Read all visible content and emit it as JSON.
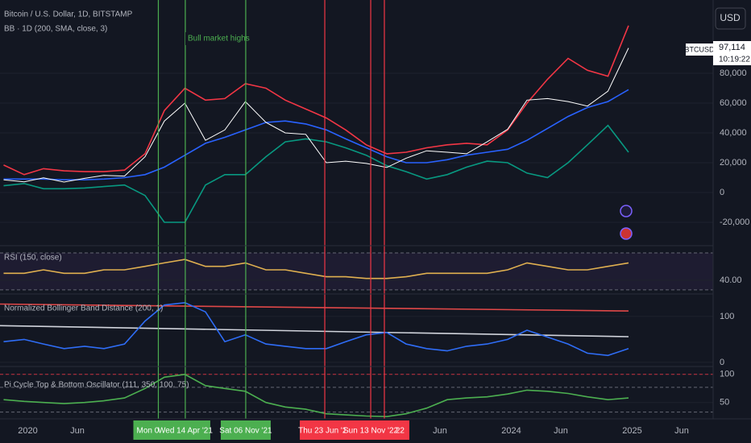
{
  "chart_data": [
    {
      "type": "line",
      "title": "Bitcoin / U.S. Dollar, 1D, BITSTAMP",
      "subtitle": "BB · 1D (200, SMA, close, 3)",
      "annotation": "Bull market highs",
      "x": [
        2019.8,
        2019.97,
        2020.13,
        2020.3,
        2020.47,
        2020.63,
        2020.8,
        2020.97,
        2021.13,
        2021.3,
        2021.47,
        2021.63,
        2021.8,
        2021.97,
        2022.13,
        2022.3,
        2022.47,
        2022.63,
        2022.8,
        2022.97,
        2023.13,
        2023.3,
        2023.47,
        2023.63,
        2023.8,
        2023.97,
        2024.13,
        2024.3,
        2024.47,
        2024.63,
        2024.8,
        2024.97
      ],
      "xlim": [
        2019.77,
        2025.67
      ],
      "ylim": [
        -35700,
        129200
      ],
      "yticks": [
        {
          "value": -20000,
          "label": "-20,000"
        },
        0,
        {
          "value": 20000,
          "label": "20,000"
        },
        {
          "value": 40000,
          "label": "40,000"
        },
        {
          "value": 60000,
          "label": "60,000"
        },
        {
          "value": 80000,
          "label": "80,000"
        }
      ],
      "series": [
        {
          "color": "#f23645",
          "values": [
            18400,
            12000,
            16000,
            14500,
            14000,
            14000,
            15000,
            26000,
            55000,
            70000,
            62000,
            63000,
            73000,
            70000,
            62000,
            56000,
            50000,
            42000,
            32000,
            26000,
            27000,
            30000,
            32000,
            33000,
            32000,
            42000,
            60000,
            76000,
            90000,
            82000,
            78000,
            112000
          ]
        },
        {
          "color": "#2962ff",
          "values": [
            9000,
            9000,
            9000,
            8500,
            8500,
            9000,
            10000,
            12000,
            17000,
            25000,
            33000,
            37000,
            42000,
            47000,
            48000,
            46000,
            42000,
            36000,
            30000,
            24000,
            20000,
            20000,
            22000,
            25000,
            27000,
            29000,
            35000,
            43000,
            51000,
            57000,
            61000,
            69000
          ]
        },
        {
          "color": "#089981",
          "values": [
            4500,
            6000,
            2500,
            2500,
            3000,
            4000,
            5000,
            -2000,
            -20000,
            -20000,
            5000,
            12000,
            12000,
            24000,
            34000,
            36000,
            34000,
            30000,
            25000,
            18000,
            14000,
            9000,
            12000,
            17000,
            21000,
            20000,
            13000,
            10000,
            20000,
            32000,
            45000,
            27000
          ]
        },
        {
          "name": "BTCUSD",
          "color": "#ffffff",
          "values": [
            8500,
            7200,
            9800,
            7000,
            9500,
            11500,
            11000,
            24000,
            48000,
            60000,
            35000,
            42000,
            61000,
            47000,
            40000,
            39000,
            20000,
            21000,
            19500,
            16800,
            23000,
            28000,
            27000,
            26000,
            34000,
            42500,
            62000,
            63000,
            61000,
            58000,
            68000,
            97000
          ]
        }
      ],
      "last_value": {
        "value": 97114,
        "label": "97,114"
      },
      "countdown": "10:19:22",
      "vlines": [
        {
          "value": 2021.08,
          "label": "Mon 0",
          "color": "#4caf50"
        },
        {
          "value": 2021.303,
          "label": "Wed 14 Apr '21",
          "color": "#4caf50"
        },
        {
          "value": 2021.803,
          "label": "Sat 06 Nov '21",
          "color": "#4caf50"
        },
        {
          "value": 2022.95,
          "label": "22",
          "color": "#f23645"
        },
        {
          "value": 2022.457,
          "label": "Thu 23 Jun '22",
          "color": "#f23645"
        },
        {
          "value": 2022.837,
          "label": "Sun 13 Nov '22",
          "color": "#f23645"
        }
      ],
      "xticks": [
        {
          "value": 2020.0,
          "label": "2020"
        },
        {
          "value": 2020.41,
          "label": "Jun"
        },
        {
          "value": 2023.41,
          "label": "Jun"
        },
        {
          "value": 2024.0,
          "label": "2024"
        },
        {
          "value": 2024.41,
          "label": "Jun"
        },
        {
          "value": 2025.0,
          "label": "2025"
        },
        {
          "value": 2025.41,
          "label": "Jun"
        }
      ],
      "currency": "USD"
    },
    {
      "type": "line",
      "title": "RSI (150, close)",
      "ylim": [
        36,
        50
      ],
      "yticks": [
        {
          "value": 40,
          "label": "40.00"
        }
      ],
      "levels": [
        47.9,
        37.2
      ],
      "series": [
        {
          "color": "#e0b050",
          "values": [
            42,
            42,
            43,
            42,
            42,
            43,
            43,
            44,
            45,
            46,
            44,
            44,
            45,
            43,
            43,
            42,
            41,
            41,
            40.5,
            40.5,
            41,
            42,
            42,
            42,
            42,
            43,
            45,
            44,
            43,
            43,
            44,
            45
          ]
        }
      ]
    },
    {
      "type": "line",
      "title": "Normalized Bollinger Band Distance (200, 1)",
      "ylim": [
        -9,
        149
      ],
      "yticks": [
        0,
        100
      ],
      "series": [
        {
          "color": "#e04848",
          "x": [
            2019.77,
            2024.97
          ],
          "values": [
            127,
            112
          ]
        },
        {
          "color": "#d1d4dc",
          "x": [
            2019.77,
            2024.97
          ],
          "values": [
            80,
            56
          ]
        },
        {
          "color": "#2f6df6",
          "values": [
            45,
            50,
            40,
            30,
            35,
            30,
            40,
            90,
            125,
            130,
            110,
            45,
            60,
            40,
            35,
            30,
            30,
            45,
            60,
            65,
            40,
            30,
            25,
            35,
            40,
            50,
            70,
            55,
            40,
            20,
            15,
            30
          ]
        }
      ]
    },
    {
      "type": "line",
      "title": "Pi Cycle Top & Bottom Oscillator (111, 350, 100, 75)",
      "ylim": [
        21,
        114
      ],
      "yticks": [
        50,
        100
      ],
      "levels": [
        100,
        77,
        33
      ],
      "series": [
        {
          "color": "#4caf50",
          "values": [
            55,
            52,
            50,
            48,
            50,
            53,
            58,
            75,
            95,
            100,
            80,
            75,
            70,
            50,
            42,
            38,
            30,
            28,
            26,
            25,
            30,
            40,
            55,
            58,
            60,
            65,
            72,
            70,
            66,
            60,
            55,
            58
          ]
        }
      ]
    }
  ]
}
